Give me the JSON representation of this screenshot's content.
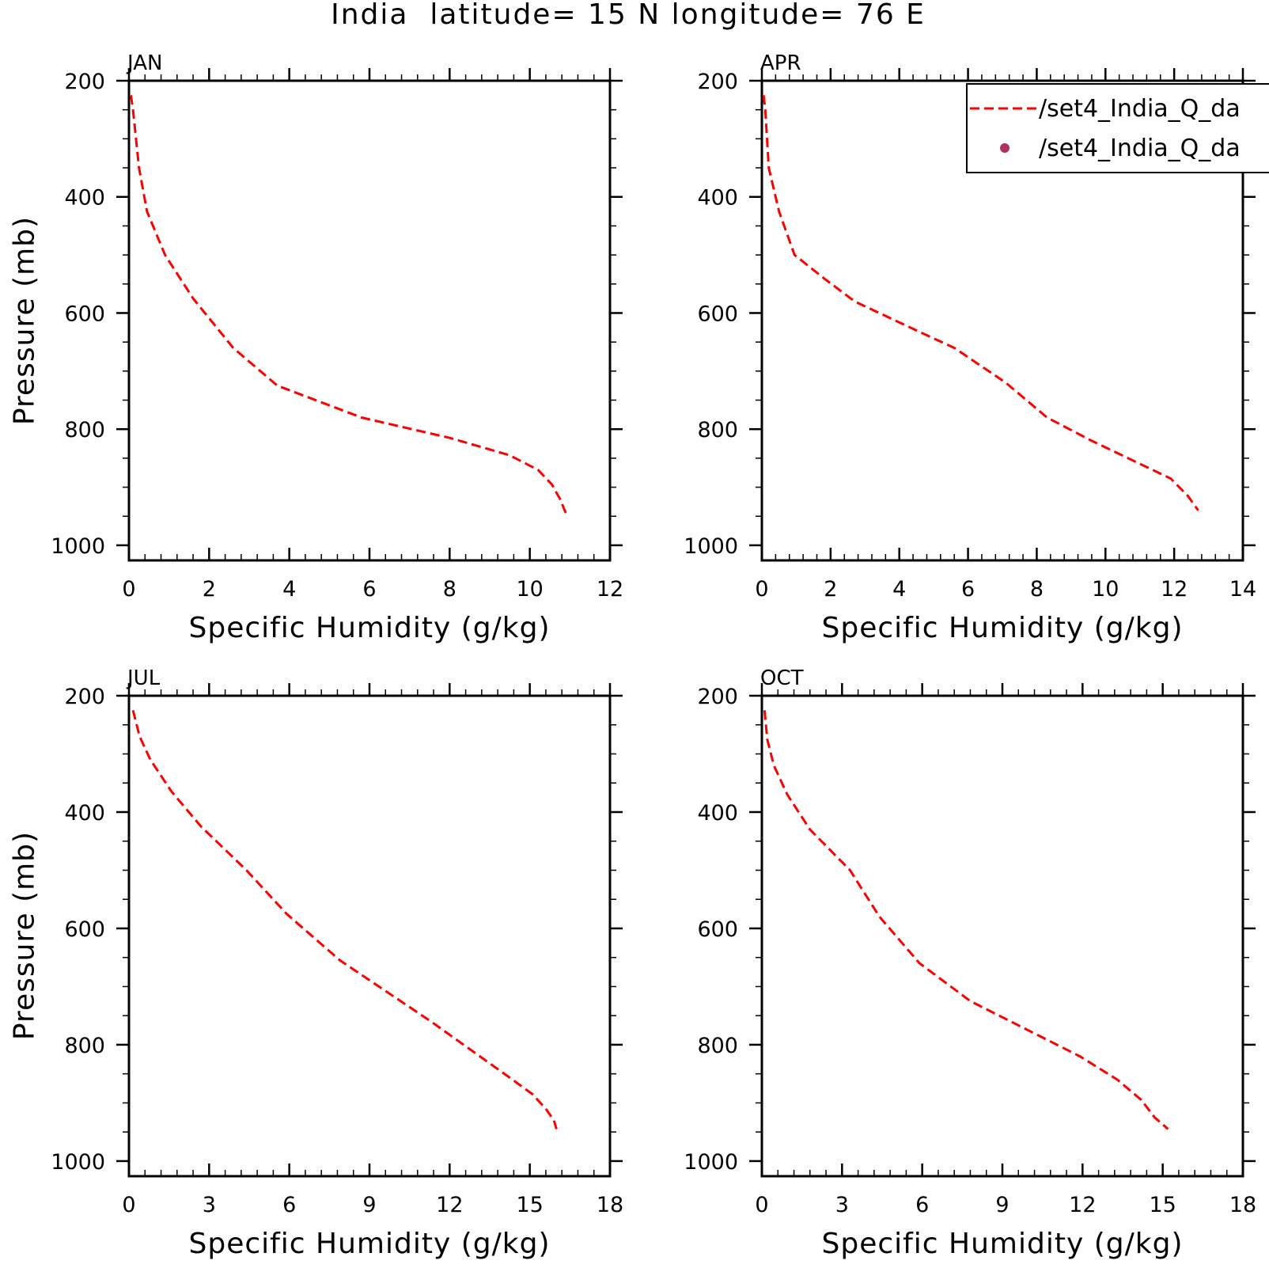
{
  "figure": {
    "title": "India  latitude= 15 N longitude= 76 E"
  },
  "legend": {
    "entries": [
      {
        "label": "/set4_India_Q_da",
        "style": "dashed-line",
        "color": "#ff0000"
      },
      {
        "label": "/set4_India_Q_da",
        "style": "dot",
        "color": "#b03060"
      }
    ]
  },
  "chart_data": [
    {
      "type": "line",
      "panel": "JAN",
      "xlabel": "Specific Humidity (g/kg)",
      "ylabel": "Pressure (mb)",
      "xlim": [
        0,
        12
      ],
      "ylim": [
        1000,
        200
      ],
      "xticks": [
        0,
        2,
        4,
        6,
        8,
        10,
        12
      ],
      "yticks": [
        200,
        400,
        600,
        800,
        1000
      ],
      "series": [
        {
          "color": "#ff0000",
          "style": "dashed",
          "x": [
            0.05,
            0.1,
            0.25,
            0.45,
            0.9,
            1.6,
            2.6,
            3.7,
            5.8,
            8.0,
            9.5,
            10.2,
            10.55,
            10.75,
            10.9
          ],
          "y": [
            225,
            250,
            350,
            425,
            500,
            575,
            660,
            725,
            780,
            815,
            845,
            870,
            895,
            920,
            945
          ]
        }
      ]
    },
    {
      "type": "line",
      "panel": "APR",
      "xlabel": "Specific Humidity (g/kg)",
      "ylabel": "",
      "xlim": [
        0,
        14
      ],
      "ylim": [
        1000,
        200
      ],
      "xticks": [
        0,
        2,
        4,
        6,
        8,
        10,
        12,
        14
      ],
      "yticks": [
        200,
        400,
        600,
        800,
        1000
      ],
      "series": [
        {
          "color": "#ff0000",
          "style": "dashed",
          "x": [
            0.05,
            0.1,
            0.2,
            0.5,
            0.95,
            1.8,
            2.7,
            4.5,
            5.6,
            7.1,
            8.3,
            9.6,
            11.9,
            12.4,
            12.7
          ],
          "y": [
            225,
            250,
            350,
            425,
            500,
            540,
            580,
            630,
            660,
            720,
            780,
            820,
            885,
            915,
            940
          ]
        }
      ]
    },
    {
      "type": "line",
      "panel": "JUL",
      "xlabel": "Specific Humidity (g/kg)",
      "ylabel": "Pressure (mb)",
      "xlim": [
        0,
        18
      ],
      "ylim": [
        1000,
        200
      ],
      "xticks": [
        0,
        3,
        6,
        9,
        12,
        15,
        18
      ],
      "yticks": [
        200,
        400,
        600,
        800,
        1000
      ],
      "series": [
        {
          "color": "#ff0000",
          "style": "dashed",
          "x": [
            0.15,
            0.4,
            0.8,
            1.6,
            2.7,
            4.4,
            5.9,
            7.9,
            11.3,
            14.2,
            15.1,
            15.6,
            15.9,
            16.0
          ],
          "y": [
            225,
            270,
            310,
            365,
            425,
            500,
            575,
            655,
            760,
            855,
            885,
            910,
            930,
            945
          ]
        }
      ]
    },
    {
      "type": "line",
      "panel": "OCT",
      "xlabel": "Specific Humidity (g/kg)",
      "ylabel": "",
      "xlim": [
        0,
        18
      ],
      "ylim": [
        1000,
        200
      ],
      "xticks": [
        0,
        3,
        6,
        9,
        12,
        15,
        18
      ],
      "yticks": [
        200,
        400,
        600,
        800,
        1000
      ],
      "series": [
        {
          "color": "#ff0000",
          "style": "dashed",
          "x": [
            0.1,
            0.2,
            0.45,
            0.95,
            1.8,
            3.3,
            4.4,
            5.9,
            7.8,
            11.9,
            13.3,
            14.2,
            14.7,
            15.2
          ],
          "y": [
            225,
            275,
            320,
            370,
            430,
            500,
            580,
            660,
            725,
            820,
            860,
            895,
            925,
            945
          ]
        }
      ]
    }
  ]
}
